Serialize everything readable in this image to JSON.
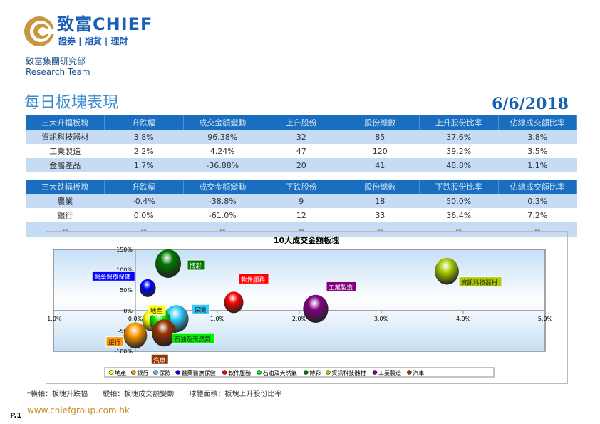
{
  "header": {
    "brand": "致富CHIEF",
    "brand_sub": "證券 | 期貨 | 理財",
    "dept_cn": "致富集團研究部",
    "dept_en": "Research Team"
  },
  "page_title": "每日板塊表現",
  "date": "6/6/2018",
  "gainers": {
    "headers": [
      "三大升幅板塊",
      "升跌幅",
      "成交金額變動",
      "上升股份",
      "股份總數",
      "上升股份比率",
      "佔總成交額比率"
    ],
    "rows": [
      [
        "資訊科技器材",
        "3.8%",
        "96.38%",
        "32",
        "85",
        "37.6%",
        "3.8%"
      ],
      [
        "工業製造",
        "2.2%",
        "4.24%",
        "47",
        "120",
        "39.2%",
        "3.5%"
      ],
      [
        "金屬產品",
        "1.7%",
        "-36.88%",
        "20",
        "41",
        "48.8%",
        "1.1%"
      ]
    ]
  },
  "losers": {
    "headers": [
      "三大跌幅板塊",
      "升跌幅",
      "成交金額變動",
      "下跌股份",
      "股份總數",
      "下跌股份比率",
      "佔總成交額比率"
    ],
    "rows": [
      [
        "農業",
        "-0.4%",
        "-38.8%",
        "9",
        "18",
        "50.0%",
        "0.3%"
      ],
      [
        "銀行",
        "0.0%",
        "-61.0%",
        "12",
        "33",
        "36.4%",
        "7.2%"
      ],
      [
        "--",
        "--",
        "--",
        "--",
        "--",
        "--",
        "--"
      ]
    ]
  },
  "chart_data": {
    "type": "bubble",
    "title": "10大成交金額板塊",
    "xlim": [
      -1,
      5
    ],
    "ylim": [
      -100,
      150
    ],
    "xticks": [
      "-1.0%",
      "0.0%",
      "1.0%",
      "2.0%",
      "3.0%",
      "4.0%",
      "5.0%"
    ],
    "yticks": [
      "150%",
      "100%",
      "50%",
      "0%",
      "-50%",
      "-100%"
    ],
    "legend": "bottom",
    "series": [
      {
        "name": "地產",
        "x": 0.2,
        "y": -25,
        "size": 30,
        "color": "#ffff00"
      },
      {
        "name": "銀行",
        "x": 0.0,
        "y": -61,
        "size": 36.4,
        "color": "#ff9900"
      },
      {
        "name": "保險",
        "x": 0.5,
        "y": -20,
        "size": 38,
        "color": "#33ccff"
      },
      {
        "name": "醫藥醫療保健",
        "x": 0.15,
        "y": 55,
        "size": 25,
        "color": "#0000ff"
      },
      {
        "name": "軟件服務",
        "x": 1.2,
        "y": 20,
        "size": 30,
        "color": "#ff0000"
      },
      {
        "name": "石油及天然氣",
        "x": 0.3,
        "y": -25,
        "size": 33,
        "color": "#00ee00"
      },
      {
        "name": "博彩",
        "x": 0.4,
        "y": 115,
        "size": 40,
        "color": "#007700"
      },
      {
        "name": "資訊科技器材",
        "x": 3.8,
        "y": 96.38,
        "size": 37.6,
        "color": "#aacc00"
      },
      {
        "name": "工業製造",
        "x": 2.2,
        "y": 4.24,
        "size": 39.2,
        "color": "#800080"
      },
      {
        "name": "汽車",
        "x": 0.35,
        "y": -55,
        "size": 38,
        "color": "#993300"
      }
    ]
  },
  "footnote": "*橫軸：板塊升跌幅 縱軸：板塊成交額變動 球體面積：板塊上升股份比率",
  "page": "P.1",
  "url": "www.chiefgroup.com.hk"
}
